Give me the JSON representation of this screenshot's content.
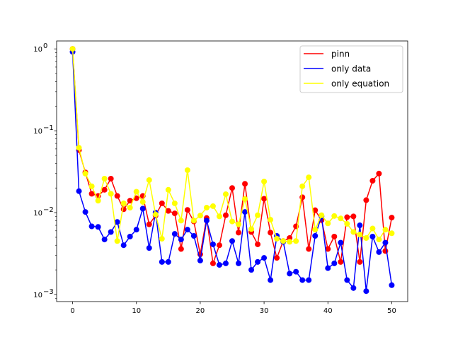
{
  "chart_data": {
    "type": "line",
    "title": "",
    "xlabel": "",
    "ylabel": "",
    "xlim": [
      -2.5,
      52.5
    ],
    "ylim": [
      0.00082,
      1.25
    ],
    "yscale": "log",
    "grid": false,
    "legend_position": "top-right",
    "x_ticks": [
      0,
      10,
      20,
      30,
      40,
      50
    ],
    "x_tick_labels": [
      "0",
      "10",
      "20",
      "30",
      "40",
      "50"
    ],
    "y_ticks": [
      0.001,
      0.01,
      0.1,
      1
    ],
    "y_tick_label_bases": [
      "10",
      "10",
      "10",
      "10"
    ],
    "y_tick_label_exponents": [
      "−3",
      "−2",
      "−1",
      "0"
    ],
    "x": [
      0,
      1,
      2,
      3,
      4,
      5,
      6,
      7,
      8,
      9,
      10,
      11,
      12,
      13,
      14,
      15,
      16,
      17,
      18,
      19,
      20,
      21,
      22,
      23,
      24,
      25,
      26,
      27,
      28,
      29,
      30,
      31,
      32,
      33,
      34,
      35,
      36,
      37,
      38,
      39,
      40,
      41,
      42,
      43,
      44,
      45,
      46,
      47,
      48,
      49,
      50
    ],
    "series": [
      {
        "name": "pinn",
        "color": "#ff0000",
        "values": [
          1.0,
          0.058,
          0.031,
          0.017,
          0.016,
          0.019,
          0.026,
          0.016,
          0.011,
          0.014,
          0.015,
          0.016,
          0.0072,
          0.0092,
          0.013,
          0.0105,
          0.0098,
          0.0036,
          0.0108,
          0.0078,
          0.0031,
          0.0086,
          0.0024,
          0.004,
          0.0093,
          0.02,
          0.0057,
          0.0225,
          0.0058,
          0.0041,
          0.0148,
          0.0057,
          0.0028,
          0.0045,
          0.0049,
          0.0068,
          0.0154,
          0.0036,
          0.0107,
          0.0081,
          0.0036,
          0.0051,
          0.0025,
          0.0088,
          0.009,
          0.0025,
          0.0142,
          0.0245,
          0.03,
          0.0034,
          0.0087
        ]
      },
      {
        "name": "only data",
        "color": "#0000ff",
        "values": [
          0.92,
          0.0183,
          0.0102,
          0.0068,
          0.0067,
          0.0047,
          0.0058,
          0.0077,
          0.004,
          0.0051,
          0.0062,
          0.0112,
          0.0037,
          0.01,
          0.0025,
          0.0025,
          0.0055,
          0.0047,
          0.0062,
          0.0052,
          0.0026,
          0.008,
          0.0041,
          0.0023,
          0.0024,
          0.0045,
          0.0024,
          0.0102,
          0.002,
          0.0025,
          0.0028,
          0.0015,
          0.0052,
          0.0044,
          0.0018,
          0.0019,
          0.0015,
          0.0015,
          0.0052,
          0.009,
          0.0021,
          0.0024,
          0.0043,
          0.0015,
          0.0012,
          0.007,
          0.0011,
          0.0051,
          0.0033,
          0.0043,
          0.0013
        ]
      },
      {
        "name": "only equation",
        "color": "#ffff00",
        "values": [
          1.0,
          0.062,
          0.03,
          0.021,
          0.014,
          0.026,
          0.017,
          0.0045,
          0.013,
          0.0115,
          0.018,
          0.0135,
          0.025,
          0.0095,
          0.0048,
          0.019,
          0.013,
          0.008,
          0.033,
          0.008,
          0.0092,
          0.0115,
          0.012,
          0.009,
          0.0168,
          0.0078,
          0.0072,
          0.0147,
          0.0063,
          0.0093,
          0.024,
          0.0082,
          0.0048,
          0.0045,
          0.0044,
          0.0045,
          0.021,
          0.027,
          0.0062,
          0.0093,
          0.0074,
          0.0091,
          0.0085,
          0.0073,
          0.0058,
          0.0054,
          0.0049,
          0.0064,
          0.0047,
          0.0062,
          0.0056
        ]
      }
    ]
  }
}
